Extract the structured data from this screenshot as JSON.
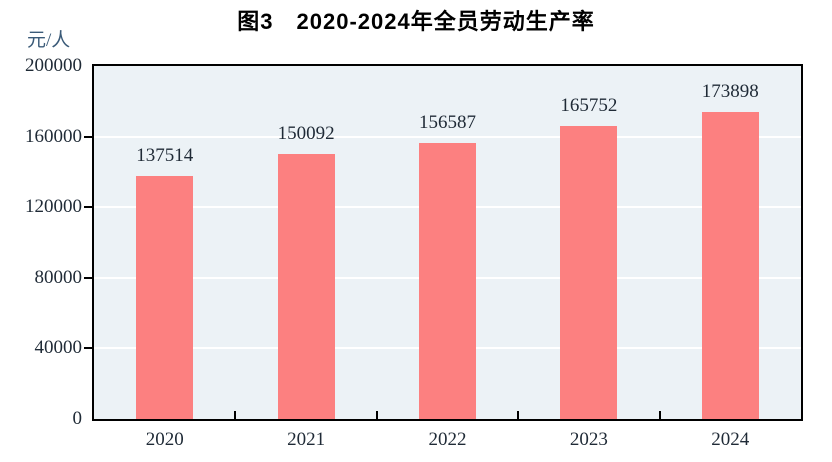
{
  "title": "图3　2020-2024年全员劳动生产率",
  "y_unit_label": "元/人",
  "colors": {
    "bar": "#FC8080",
    "plot_background": "#ECF2F6",
    "gridline": "#FFFFFF",
    "axis": "#000000",
    "tick_text": "#1F2A36",
    "unit_text": "#3A5A78",
    "title_text": "#000000"
  },
  "chart_data": {
    "type": "bar",
    "title": "图3　2020-2024年全员劳动生产率",
    "categories": [
      "2020",
      "2021",
      "2022",
      "2023",
      "2024"
    ],
    "values": [
      137514,
      150092,
      156587,
      165752,
      173898
    ],
    "value_labels": [
      "137514",
      "150092",
      "156587",
      "165752",
      "173898"
    ],
    "xlabel": "",
    "ylabel": "元/人",
    "ylim": [
      0,
      200000
    ],
    "yticks": [
      0,
      40000,
      80000,
      120000,
      160000,
      200000
    ],
    "ytick_labels": [
      "0",
      "40000",
      "80000",
      "120000",
      "160000",
      "200000"
    ],
    "grid": true,
    "legend": "none",
    "data_labels": true
  }
}
